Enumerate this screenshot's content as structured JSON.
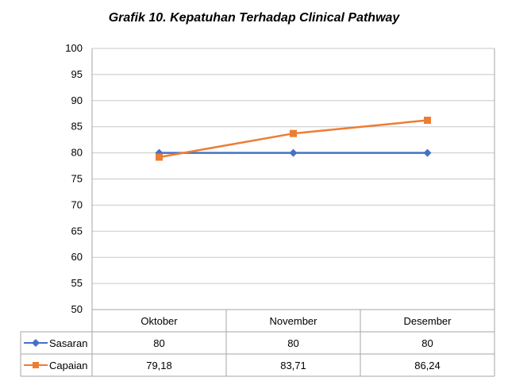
{
  "chart_data": {
    "type": "line",
    "title": "Grafik 10. Kepatuhan Terhadap Clinical Pathway",
    "categories": [
      "Oktober",
      "November",
      "Desember"
    ],
    "ylim": [
      50,
      100
    ],
    "yticks": [
      50,
      55,
      60,
      65,
      70,
      75,
      80,
      85,
      90,
      95,
      100
    ],
    "grid": true,
    "legend": "data-table",
    "series": [
      {
        "name": "Sasaran",
        "values": [
          80,
          80,
          80
        ],
        "labels": [
          "80",
          "80",
          "80"
        ],
        "color": "#4472C4",
        "marker": "diamond"
      },
      {
        "name": "Capaian",
        "values": [
          79.18,
          83.71,
          86.24
        ],
        "labels": [
          "79,18",
          "83,71",
          "86,24"
        ],
        "color": "#ED7D31",
        "marker": "square"
      }
    ]
  }
}
